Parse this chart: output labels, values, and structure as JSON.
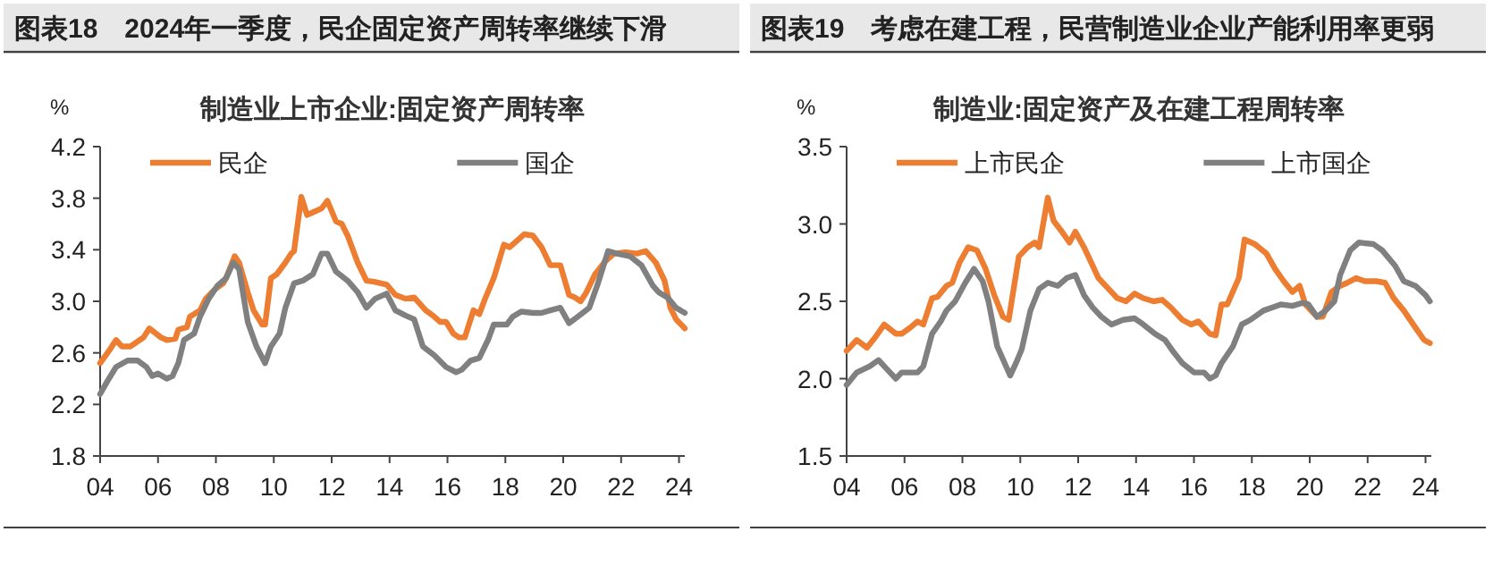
{
  "chart_data": [
    {
      "type": "line",
      "title": "图表18　2024年一季度，民企固定资产周转率继续下滑",
      "subtitle": "制造业上市企业:固定资产周转率",
      "ylabel": "%",
      "legend": "top",
      "xlim": [
        2004,
        2024.2
      ],
      "xticks": [
        {
          "value": 2004,
          "label": "04"
        },
        {
          "value": 2006,
          "label": "06"
        },
        {
          "value": 2008,
          "label": "08"
        },
        {
          "value": 2010,
          "label": "10"
        },
        {
          "value": 2012,
          "label": "12"
        },
        {
          "value": 2014,
          "label": "14"
        },
        {
          "value": 2016,
          "label": "16"
        },
        {
          "value": 2018,
          "label": "18"
        },
        {
          "value": 2020,
          "label": "20"
        },
        {
          "value": 2022,
          "label": "22"
        },
        {
          "value": 2024,
          "label": "24"
        }
      ],
      "ylim": [
        1.8,
        4.2
      ],
      "yticks": [
        {
          "value": 1.8,
          "label": "1.8"
        },
        {
          "value": 2.2,
          "label": "2.2"
        },
        {
          "value": 2.6,
          "label": "2.6"
        },
        {
          "value": 3.0,
          "label": "3.0"
        },
        {
          "value": 3.4,
          "label": "3.4"
        },
        {
          "value": 3.8,
          "label": "3.8"
        },
        {
          "value": 4.2,
          "label": "4.2"
        }
      ],
      "series": [
        {
          "name": "民企",
          "color": "#ed7d31",
          "x": [
            2004.0,
            2004.35,
            2004.55,
            2004.75,
            2005.05,
            2005.5,
            2005.7,
            2006.1,
            2006.3,
            2006.6,
            2006.7,
            2007.0,
            2007.1,
            2007.45,
            2007.65,
            2007.95,
            2008.25,
            2008.35,
            2008.65,
            2008.8,
            2009.1,
            2009.3,
            2009.6,
            2009.7,
            2009.9,
            2010.1,
            2010.4,
            2010.6,
            2010.7,
            2010.95,
            2011.15,
            2011.35,
            2011.65,
            2011.85,
            2012.15,
            2012.35,
            2012.55,
            2012.9,
            2013.2,
            2013.5,
            2013.9,
            2014.2,
            2014.55,
            2014.85,
            2015.05,
            2015.25,
            2015.55,
            2015.75,
            2015.95,
            2016.2,
            2016.4,
            2016.6,
            2016.9,
            2017.1,
            2017.3,
            2017.6,
            2017.95,
            2018.15,
            2018.45,
            2018.65,
            2018.95,
            2019.25,
            2019.55,
            2019.9,
            2020.2,
            2020.4,
            2020.6,
            2020.8,
            2021.1,
            2021.45,
            2021.75,
            2022.15,
            2022.55,
            2022.85,
            2023.2,
            2023.5,
            2023.7,
            2023.9,
            2024.2
          ],
          "values": [
            2.52,
            2.63,
            2.7,
            2.65,
            2.65,
            2.72,
            2.79,
            2.72,
            2.7,
            2.71,
            2.78,
            2.8,
            2.88,
            2.93,
            3.02,
            3.09,
            3.14,
            3.18,
            3.35,
            3.3,
            3.07,
            2.93,
            2.82,
            2.82,
            3.18,
            3.21,
            3.3,
            3.37,
            3.39,
            3.81,
            3.67,
            3.69,
            3.72,
            3.78,
            3.62,
            3.6,
            3.51,
            3.3,
            3.16,
            3.15,
            3.13,
            3.05,
            3.02,
            3.03,
            2.98,
            2.93,
            2.88,
            2.84,
            2.84,
            2.75,
            2.72,
            2.72,
            2.93,
            2.9,
            3.02,
            3.18,
            3.44,
            3.42,
            3.48,
            3.52,
            3.51,
            3.42,
            3.28,
            3.28,
            3.05,
            3.03,
            3.0,
            3.07,
            3.21,
            3.31,
            3.37,
            3.38,
            3.37,
            3.39,
            3.3,
            3.16,
            2.95,
            2.86,
            2.79
          ]
        },
        {
          "name": "国企",
          "color": "#808080",
          "x": [
            2004.0,
            2004.25,
            2004.55,
            2004.95,
            2005.3,
            2005.6,
            2005.8,
            2006.0,
            2006.3,
            2006.5,
            2006.7,
            2006.9,
            2007.25,
            2007.45,
            2007.75,
            2008.05,
            2008.35,
            2008.6,
            2008.8,
            2009.1,
            2009.4,
            2009.7,
            2009.9,
            2010.2,
            2010.4,
            2010.7,
            2011.0,
            2011.35,
            2011.65,
            2011.85,
            2012.15,
            2012.55,
            2012.9,
            2013.2,
            2013.5,
            2013.9,
            2014.2,
            2014.55,
            2014.85,
            2015.15,
            2015.55,
            2015.95,
            2016.3,
            2016.5,
            2016.8,
            2017.1,
            2017.4,
            2017.6,
            2018.05,
            2018.25,
            2018.55,
            2018.95,
            2019.25,
            2019.55,
            2019.9,
            2020.2,
            2020.5,
            2020.9,
            2021.2,
            2021.55,
            2021.85,
            2022.3,
            2022.7,
            2023.1,
            2023.3,
            2023.6,
            2023.9,
            2024.2
          ],
          "values": [
            2.28,
            2.38,
            2.49,
            2.54,
            2.54,
            2.49,
            2.42,
            2.44,
            2.4,
            2.42,
            2.52,
            2.7,
            2.75,
            2.88,
            3.02,
            3.12,
            3.18,
            3.3,
            3.25,
            2.84,
            2.65,
            2.52,
            2.65,
            2.75,
            2.95,
            3.14,
            3.16,
            3.21,
            3.37,
            3.37,
            3.23,
            3.16,
            3.07,
            2.95,
            3.02,
            3.06,
            2.93,
            2.89,
            2.86,
            2.65,
            2.58,
            2.49,
            2.45,
            2.47,
            2.54,
            2.56,
            2.7,
            2.82,
            2.82,
            2.88,
            2.92,
            2.91,
            2.91,
            2.93,
            2.95,
            2.83,
            2.88,
            2.95,
            3.14,
            3.39,
            3.37,
            3.35,
            3.28,
            3.12,
            3.07,
            3.03,
            2.95,
            2.91
          ]
        }
      ]
    },
    {
      "type": "line",
      "title": "图表19　考虑在建工程，民营制造业企业产能利用率更弱",
      "subtitle": "制造业:固定资产及在建工程周转率",
      "ylabel": "%",
      "legend": "top",
      "xlim": [
        2004,
        2024.2
      ],
      "xticks": [
        {
          "value": 2004,
          "label": "04"
        },
        {
          "value": 2006,
          "label": "06"
        },
        {
          "value": 2008,
          "label": "08"
        },
        {
          "value": 2010,
          "label": "10"
        },
        {
          "value": 2012,
          "label": "12"
        },
        {
          "value": 2014,
          "label": "14"
        },
        {
          "value": 2016,
          "label": "16"
        },
        {
          "value": 2018,
          "label": "18"
        },
        {
          "value": 2020,
          "label": "20"
        },
        {
          "value": 2022,
          "label": "22"
        },
        {
          "value": 2024,
          "label": "24"
        }
      ],
      "ylim": [
        1.5,
        3.5
      ],
      "yticks": [
        {
          "value": 1.5,
          "label": "1.5"
        },
        {
          "value": 2.0,
          "label": "2.0"
        },
        {
          "value": 2.5,
          "label": "2.5"
        },
        {
          "value": 3.0,
          "label": "3.0"
        },
        {
          "value": 3.5,
          "label": "3.5"
        }
      ],
      "series": [
        {
          "name": "上市民企",
          "color": "#ed7d31",
          "x": [
            2004.0,
            2004.35,
            2004.7,
            2005.0,
            2005.3,
            2005.7,
            2005.9,
            2006.2,
            2006.45,
            2006.65,
            2006.95,
            2007.15,
            2007.45,
            2007.65,
            2007.9,
            2008.2,
            2008.5,
            2008.8,
            2009.1,
            2009.4,
            2009.6,
            2009.95,
            2010.25,
            2010.5,
            2010.65,
            2010.95,
            2011.15,
            2011.4,
            2011.7,
            2011.9,
            2012.2,
            2012.5,
            2012.7,
            2013.05,
            2013.35,
            2013.65,
            2013.95,
            2014.25,
            2014.6,
            2014.9,
            2015.2,
            2015.6,
            2015.9,
            2016.15,
            2016.55,
            2016.75,
            2016.95,
            2017.15,
            2017.55,
            2017.75,
            2018.1,
            2018.5,
            2018.8,
            2019.1,
            2019.4,
            2019.65,
            2019.85,
            2020.25,
            2020.45,
            2020.75,
            2021.05,
            2021.3,
            2021.6,
            2021.9,
            2022.3,
            2022.6,
            2022.9,
            2023.25,
            2023.65,
            2023.95,
            2024.15
          ],
          "values": [
            2.18,
            2.25,
            2.2,
            2.27,
            2.35,
            2.29,
            2.29,
            2.33,
            2.37,
            2.35,
            2.52,
            2.53,
            2.6,
            2.62,
            2.75,
            2.85,
            2.83,
            2.71,
            2.54,
            2.4,
            2.38,
            2.79,
            2.85,
            2.88,
            2.85,
            3.17,
            3.02,
            2.96,
            2.88,
            2.95,
            2.85,
            2.73,
            2.65,
            2.58,
            2.52,
            2.5,
            2.55,
            2.52,
            2.5,
            2.51,
            2.46,
            2.38,
            2.35,
            2.37,
            2.29,
            2.28,
            2.48,
            2.48,
            2.65,
            2.9,
            2.87,
            2.81,
            2.71,
            2.63,
            2.56,
            2.6,
            2.48,
            2.4,
            2.4,
            2.56,
            2.6,
            2.62,
            2.65,
            2.63,
            2.63,
            2.62,
            2.52,
            2.44,
            2.33,
            2.25,
            2.23
          ]
        },
        {
          "name": "上市国企",
          "color": "#808080",
          "x": [
            2004.0,
            2004.35,
            2004.8,
            2005.1,
            2005.4,
            2005.7,
            2005.9,
            2006.2,
            2006.45,
            2006.65,
            2006.95,
            2007.25,
            2007.45,
            2007.75,
            2008.1,
            2008.4,
            2008.7,
            2008.9,
            2009.2,
            2009.65,
            2009.85,
            2010.05,
            2010.35,
            2010.65,
            2010.95,
            2011.3,
            2011.6,
            2011.9,
            2012.2,
            2012.5,
            2012.8,
            2013.15,
            2013.55,
            2013.95,
            2014.25,
            2014.65,
            2015.0,
            2015.3,
            2015.6,
            2016.0,
            2016.35,
            2016.55,
            2016.75,
            2016.95,
            2017.35,
            2017.65,
            2017.95,
            2018.4,
            2018.7,
            2019.0,
            2019.4,
            2019.75,
            2019.95,
            2020.25,
            2020.55,
            2020.85,
            2021.05,
            2021.4,
            2021.7,
            2022.2,
            2022.5,
            2022.95,
            2023.25,
            2023.65,
            2024.0,
            2024.15
          ],
          "values": [
            1.96,
            2.04,
            2.08,
            2.12,
            2.06,
            2.0,
            2.04,
            2.04,
            2.04,
            2.08,
            2.29,
            2.37,
            2.44,
            2.5,
            2.62,
            2.71,
            2.63,
            2.5,
            2.21,
            2.02,
            2.1,
            2.19,
            2.44,
            2.58,
            2.62,
            2.6,
            2.65,
            2.67,
            2.54,
            2.46,
            2.4,
            2.35,
            2.38,
            2.39,
            2.35,
            2.29,
            2.25,
            2.17,
            2.1,
            2.04,
            2.04,
            2.0,
            2.02,
            2.1,
            2.21,
            2.35,
            2.38,
            2.44,
            2.46,
            2.48,
            2.47,
            2.49,
            2.48,
            2.4,
            2.44,
            2.5,
            2.67,
            2.83,
            2.88,
            2.87,
            2.83,
            2.73,
            2.63,
            2.6,
            2.54,
            2.5
          ]
        }
      ]
    }
  ]
}
